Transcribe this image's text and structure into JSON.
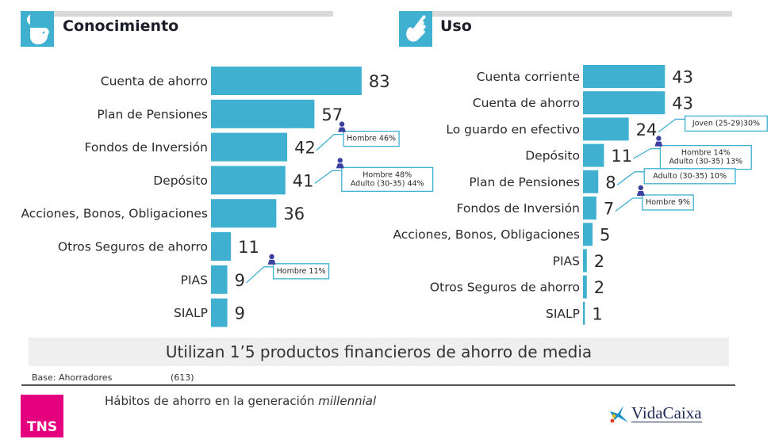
{
  "left_panel": {
    "title": "Conocimiento",
    "icon": "head-lightbulb-icon"
  },
  "right_panel": {
    "title": "Uso",
    "icon": "pointing-hand-icon"
  },
  "chart_data": [
    {
      "type": "bar",
      "orientation": "horizontal",
      "title": "Conocimiento",
      "categories": [
        "Cuenta de ahorro",
        "Plan de Pensiones",
        "Fondos de Inversión",
        "Depósito",
        "Acciones, Bonos, Obligaciones",
        "Otros Seguros de ahorro",
        "PIAS",
        "SIALP"
      ],
      "values": [
        83,
        57,
        42,
        41,
        36,
        11,
        9,
        9
      ],
      "xlim": [
        0,
        100
      ],
      "grid": false,
      "bar_color": "#3fb0cf",
      "annotations": [
        {
          "category": "Fondos de Inversión",
          "lines": [
            "Hombre 46%"
          ],
          "person_icon": true
        },
        {
          "category": "Depósito",
          "lines": [
            "Hombre 48%",
            "Adulto (30-35) 44%"
          ],
          "person_icon": true
        },
        {
          "category": "PIAS",
          "lines": [
            "Hombre 11%"
          ],
          "person_icon": true
        }
      ]
    },
    {
      "type": "bar",
      "orientation": "horizontal",
      "title": "Uso",
      "categories": [
        "Cuenta corriente",
        "Cuenta de ahorro",
        "Lo guardo en efectivo",
        "Depósito",
        "Plan de Pensiones",
        "Fondos de Inversión",
        "Acciones, Bonos, Obligaciones",
        "PIAS",
        "Otros Seguros de ahorro",
        "SIALP"
      ],
      "values": [
        43,
        43,
        24,
        11,
        8,
        7,
        5,
        2,
        2,
        1
      ],
      "xlim": [
        0,
        100
      ],
      "grid": false,
      "bar_color": "#3fb0cf",
      "annotations": [
        {
          "category": "Lo guardo en efectivo",
          "lines": [
            "Joven (25-29)30%"
          ],
          "person_icon": false
        },
        {
          "category": "Depósito",
          "lines": [
            "Hombre 14%",
            "Adulto (30-35) 13%"
          ],
          "person_icon": true
        },
        {
          "category": "Plan de Pensiones",
          "lines": [
            "Adulto (30-35) 10%"
          ],
          "person_icon": false
        },
        {
          "category": "Fondos de Inversión",
          "lines": [
            "Hombre 9%"
          ],
          "person_icon": true
        }
      ]
    }
  ],
  "summary": "Utilizan 1’5 productos financieros de ahorro de media",
  "base": {
    "label": "Base: Ahorradores",
    "n": "(613)"
  },
  "footer": {
    "title_prefix": "Hábitos de ahorro en la generación ",
    "title_italic": "millennial",
    "tns_logo": "TNS",
    "brand": "VidaCaixa"
  },
  "colors": {
    "bar": "#3fb0cf",
    "callout_border": "#3fb0cf",
    "person_icon": "#3a3fa0",
    "tns": "#e5007e"
  }
}
